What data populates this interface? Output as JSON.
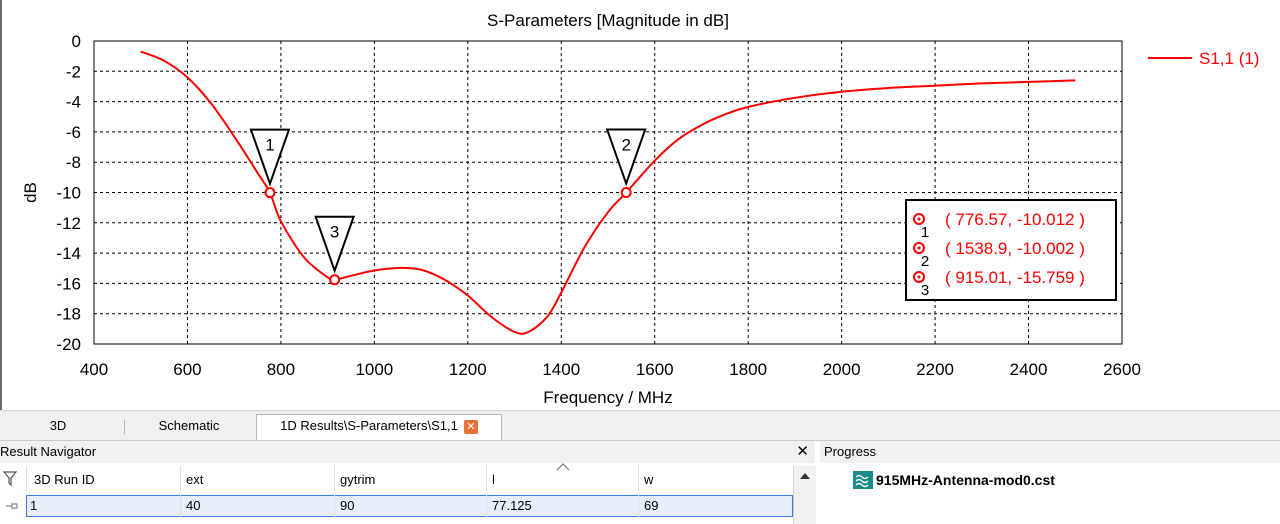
{
  "chart_data": {
    "type": "line",
    "title": "S-Parameters [Magnitude in dB]",
    "xlabel": "Frequency / MHz",
    "ylabel": "dB",
    "xlim": [
      400,
      2600
    ],
    "ylim": [
      -20,
      0
    ],
    "x_ticks": [
      400,
      600,
      800,
      1000,
      1200,
      1400,
      1600,
      1800,
      2000,
      2200,
      2400,
      2600
    ],
    "y_ticks": [
      0,
      -2,
      -4,
      -6,
      -8,
      -10,
      -12,
      -14,
      -16,
      -18,
      -20
    ],
    "grid": true,
    "legend_position": "top-right",
    "series": [
      {
        "name": "S1,1 (1)",
        "color": "#ff0000",
        "x": [
          500,
          550,
          600,
          650,
          700,
          750,
          776.57,
          800,
          850,
          900,
          915.01,
          950,
          1000,
          1050,
          1100,
          1150,
          1200,
          1250,
          1300,
          1330,
          1370,
          1400,
          1450,
          1500,
          1538.9,
          1600,
          1650,
          1700,
          1750,
          1800,
          1900,
          2000,
          2100,
          2200,
          2300,
          2400,
          2500
        ],
        "y": [
          -0.7,
          -1.3,
          -2.4,
          -4.1,
          -6.3,
          -8.7,
          -10.012,
          -11.9,
          -14.3,
          -15.6,
          -15.759,
          -15.5,
          -15.15,
          -14.98,
          -15.1,
          -15.75,
          -16.8,
          -18.2,
          -19.2,
          -19.2,
          -18.2,
          -16.6,
          -13.6,
          -11.3,
          -10.002,
          -7.9,
          -6.5,
          -5.55,
          -4.85,
          -4.35,
          -3.75,
          -3.35,
          -3.1,
          -2.95,
          -2.8,
          -2.7,
          -2.6
        ]
      }
    ],
    "markers": [
      {
        "id": "1",
        "x": 776.57,
        "y": -10.012,
        "label": "( 776.57, -10.012 )"
      },
      {
        "id": "2",
        "x": 1538.9,
        "y": -10.002,
        "label": "( 1538.9, -10.002 )"
      },
      {
        "id": "3",
        "x": 915.01,
        "y": -15.759,
        "label": "( 915.01, -15.759 )"
      }
    ]
  },
  "tabs": [
    {
      "label": "3D"
    },
    {
      "label": "Schematic"
    },
    {
      "label": "1D Results\\S-Parameters\\S1,1"
    }
  ],
  "tab_close_glyph": "✕",
  "result_navigator": {
    "title": "Result Navigator",
    "close_glyph": "✕",
    "columns": [
      "3D Run ID",
      "ext",
      "gytrim",
      "l",
      "w"
    ],
    "row": [
      "1",
      "40",
      "90",
      "77.125",
      "69"
    ]
  },
  "progress": {
    "title": "Progress",
    "file": "915MHz-Antenna-mod0.cst"
  }
}
